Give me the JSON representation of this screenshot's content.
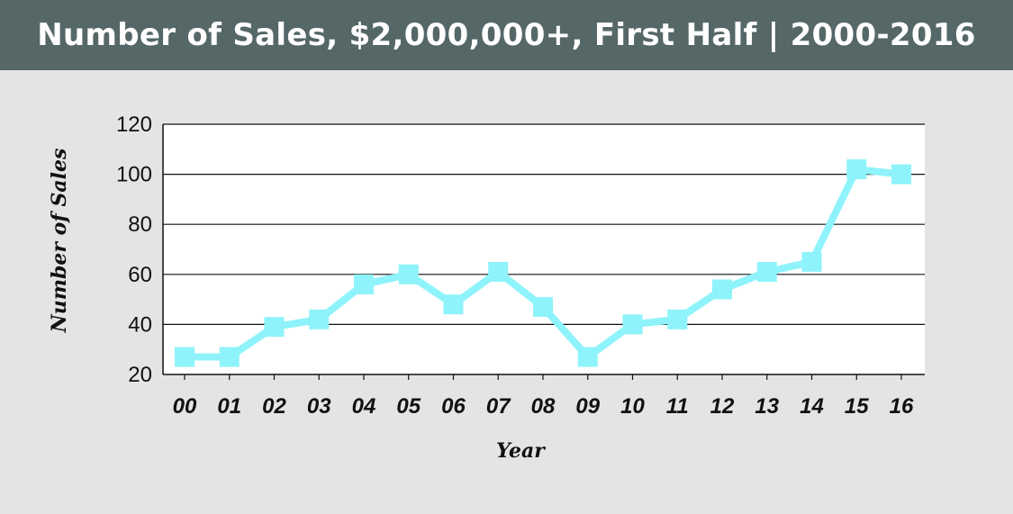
{
  "header": {
    "title": "Number of Sales, $2,000,000+, First Half | 2000-2016"
  },
  "colors": {
    "header_bg": "#566767",
    "page_bg": "#e4e4e4",
    "plot_bg": "#ffffff",
    "series": "#8ef3fb",
    "grid": "#111111"
  },
  "chart_data": {
    "type": "line",
    "title": "Number of Sales, $2,000,000+, First Half | 2000-2016",
    "xlabel": "Year",
    "ylabel": "Number of Sales",
    "categories": [
      "00",
      "01",
      "02",
      "03",
      "04",
      "05",
      "06",
      "07",
      "08",
      "09",
      "10",
      "11",
      "12",
      "13",
      "14",
      "15",
      "16"
    ],
    "series": [
      {
        "values": [
          27,
          27,
          39,
          42,
          56,
          60,
          48,
          61,
          47,
          27,
          40,
          42,
          54,
          61,
          65,
          102,
          100
        ]
      }
    ],
    "ylim": [
      20,
      120
    ],
    "yticks": [
      20,
      40,
      60,
      80,
      100,
      120
    ],
    "grid": true,
    "marker": "square",
    "legend": "none"
  }
}
